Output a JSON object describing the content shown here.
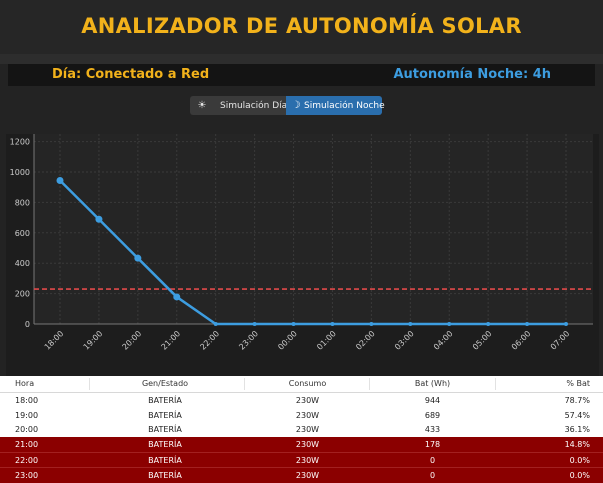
{
  "header": {
    "title": "ANALIZADOR DE AUTONOMÍA SOLAR"
  },
  "status": {
    "left": "Día: Conectado a Red",
    "right": "Autonomía Noche: 4h"
  },
  "toggle": {
    "day": {
      "icon": "sun-icon",
      "glyph": "☀",
      "label": "Simulación Día"
    },
    "night": {
      "icon": "moon-icon",
      "glyph": "☽",
      "label": "Simulación Noche",
      "selected": true
    }
  },
  "chart_data": {
    "type": "line",
    "categories": [
      "18:00",
      "19:00",
      "20:00",
      "21:00",
      "22:00",
      "23:00",
      "00:00",
      "01:00",
      "02:00",
      "03:00",
      "04:00",
      "05:00",
      "06:00",
      "07:00"
    ],
    "values": [
      944,
      689,
      433,
      178,
      0,
      0,
      0,
      0,
      0,
      0,
      0,
      0,
      0,
      0
    ],
    "yticks": [
      0,
      200,
      400,
      600,
      800,
      1000,
      1200
    ],
    "ylim": [
      0,
      1250
    ],
    "threshold": 230,
    "colors": {
      "line": "#3d9de0",
      "threshold": "#e04a4a",
      "grid": "#3a3a3a",
      "axis": "#cccccc"
    },
    "grid": true,
    "title": "",
    "xlabel": "",
    "ylabel": ""
  },
  "table": {
    "columns": [
      "Hora",
      "Gen/Estado",
      "Consumo",
      "Bat (Wh)",
      "% Bat"
    ],
    "rows": [
      {
        "hora": "18:00",
        "estado": "BATERÍA",
        "consumo": "230W",
        "bat": "944",
        "pct": "78.7%",
        "alert": false
      },
      {
        "hora": "19:00",
        "estado": "BATERÍA",
        "consumo": "230W",
        "bat": "689",
        "pct": "57.4%",
        "alert": false
      },
      {
        "hora": "20:00",
        "estado": "BATERÍA",
        "consumo": "230W",
        "bat": "433",
        "pct": "36.1%",
        "alert": false
      },
      {
        "hora": "21:00",
        "estado": "BATERÍA",
        "consumo": "230W",
        "bat": "178",
        "pct": "14.8%",
        "alert": true
      },
      {
        "hora": "22:00",
        "estado": "BATERÍA",
        "consumo": "230W",
        "bat": "0",
        "pct": "0.0%",
        "alert": true
      },
      {
        "hora": "23:00",
        "estado": "BATERÍA",
        "consumo": "230W",
        "bat": "0",
        "pct": "0.0%",
        "alert": true
      }
    ]
  }
}
